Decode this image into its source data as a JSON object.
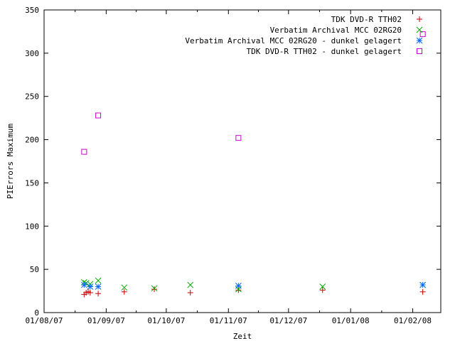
{
  "chart_data": {
    "type": "scatter",
    "title": "",
    "xlabel": "Zeit",
    "ylabel": "PIErrors Maximum",
    "x_axis_type": "date",
    "xlim": [
      "2007-08-01",
      "2008-02-15"
    ],
    "ylim": [
      0,
      350
    ],
    "x_ticks": [
      "2007-08-01",
      "2007-09-01",
      "2007-10-01",
      "2007-11-01",
      "2007-12-01",
      "2008-01-01",
      "2008-02-01"
    ],
    "x_tick_labels": [
      "01/08/07",
      "01/09/07",
      "01/10/07",
      "01/11/07",
      "01/12/07",
      "01/01/08",
      "01/02/08"
    ],
    "y_ticks": [
      0,
      50,
      100,
      150,
      200,
      250,
      300,
      350
    ],
    "y_tick_labels": [
      "0",
      "50",
      "100",
      "150",
      "200",
      "250",
      "300",
      "350"
    ],
    "grid": false,
    "legend_position": "top-right",
    "series": [
      {
        "name": "TDK DVD-R TTH02",
        "marker": "plus",
        "color": "#cc0000",
        "points": [
          [
            "2007-08-21",
            21
          ],
          [
            "2007-08-22",
            23
          ],
          [
            "2007-08-23",
            24
          ],
          [
            "2007-08-24",
            23
          ],
          [
            "2007-08-28",
            22
          ],
          [
            "2007-09-10",
            24
          ],
          [
            "2007-09-25",
            27
          ],
          [
            "2007-10-13",
            23
          ],
          [
            "2007-11-06",
            26
          ],
          [
            "2007-12-18",
            26
          ],
          [
            "2008-02-06",
            24
          ]
        ]
      },
      {
        "name": "Verbatim Archival MCC 02RG20",
        "marker": "cross",
        "color": "#00aa00",
        "points": [
          [
            "2007-08-21",
            35
          ],
          [
            "2007-08-22",
            34
          ],
          [
            "2007-08-24",
            33
          ],
          [
            "2007-08-28",
            37
          ],
          [
            "2007-09-10",
            29
          ],
          [
            "2007-09-25",
            28
          ],
          [
            "2007-10-13",
            32
          ],
          [
            "2007-11-06",
            27
          ],
          [
            "2007-12-18",
            30
          ],
          [
            "2008-02-06",
            32
          ]
        ]
      },
      {
        "name": "Verbatim Archival MCC 02RG20 - dunkel gelagert",
        "marker": "star",
        "color": "#0066ff",
        "points": [
          [
            "2007-08-21",
            32
          ],
          [
            "2007-08-24",
            30
          ],
          [
            "2007-08-28",
            30
          ],
          [
            "2007-11-06",
            31
          ],
          [
            "2008-02-06",
            32
          ]
        ]
      },
      {
        "name": "TDK DVD-R TTH02 - dunkel gelagert",
        "marker": "square",
        "color": "#cc00cc",
        "points": [
          [
            "2007-08-21",
            186
          ],
          [
            "2007-08-28",
            228
          ],
          [
            "2007-11-06",
            202
          ],
          [
            "2008-02-06",
            322
          ]
        ]
      }
    ]
  }
}
